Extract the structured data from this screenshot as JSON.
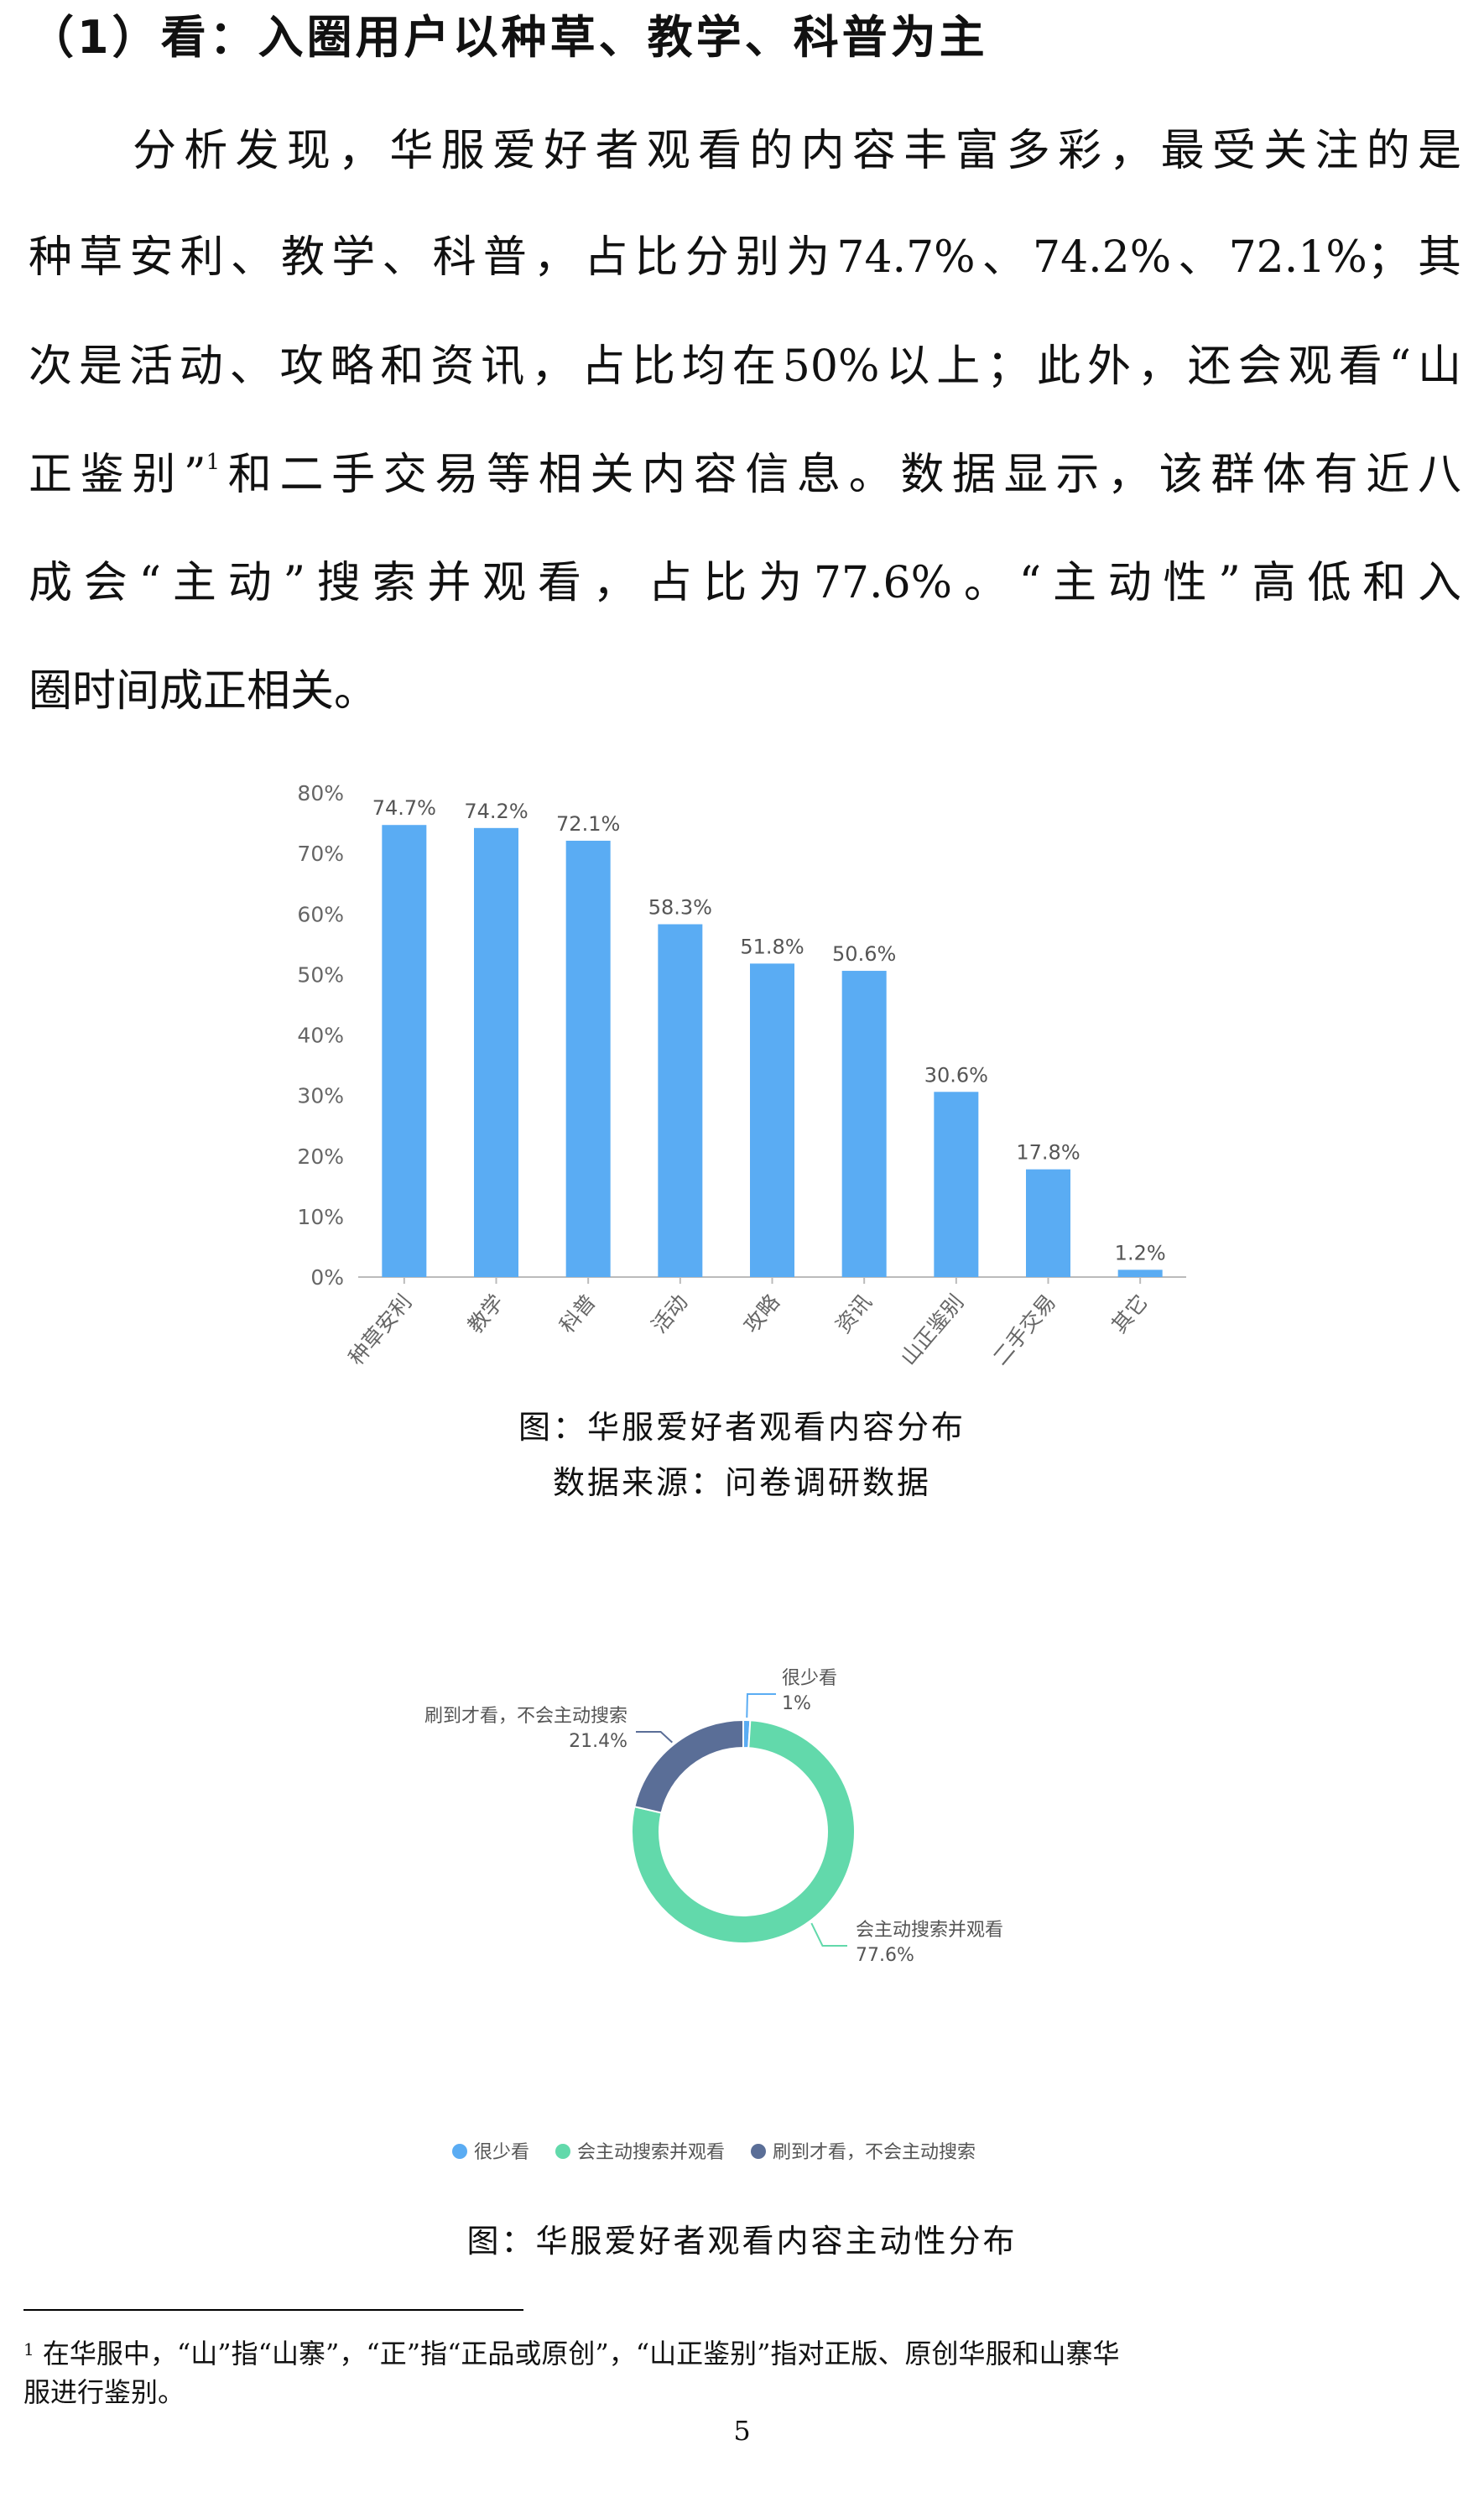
{
  "heading": "（1）看：入圈用户以种草、教学、科普为主",
  "paragraph": {
    "lines": [
      "分析发现，华服爱好者观看的内容丰富多彩，最受关注的是",
      "种草安利、教学、科普，占比分别为74.7%、74.2%、72.1%；其",
      "次是活动、攻略和资讯，占比均在50%以上；此外，还会观看“山",
      "成会“主动”搜索并观看，占比为77.6%。“主动性”高低和入",
      "圈时间成正相关。"
    ],
    "line4_before": "正鉴别”",
    "line4_footnote_ref": "1",
    "line4_after": "和二手交易等相关内容信息。数据显示，该群体有近八"
  },
  "chart_data": [
    {
      "type": "bar",
      "categories": [
        "种草安利",
        "教学",
        "科普",
        "活动",
        "攻略",
        "资讯",
        "山正鉴别",
        "二手交易",
        "其它"
      ],
      "values": [
        74.7,
        74.2,
        72.1,
        58.3,
        51.8,
        50.6,
        30.6,
        17.8,
        1.2
      ],
      "data_labels": [
        "74.7%",
        "74.2%",
        "72.1%",
        "58.3%",
        "51.8%",
        "50.6%",
        "30.6%",
        "17.8%",
        "1.2%"
      ],
      "yticks": [
        "0%",
        "10%",
        "20%",
        "30%",
        "40%",
        "50%",
        "60%",
        "70%",
        "80%"
      ],
      "ylim": [
        0,
        80
      ],
      "grid": false,
      "color": "#5aacf3",
      "title": "",
      "xlabel": "",
      "ylabel": ""
    },
    {
      "type": "pie",
      "variant": "donut",
      "slices": [
        {
          "name": "很少看",
          "value": 1,
          "label": "1%",
          "color": "#5aacf3"
        },
        {
          "name": "会主动搜索并观看",
          "value": 77.6,
          "label": "77.6%",
          "color": "#62d9ab"
        },
        {
          "name": "刷到才看，不会主动搜索",
          "value": 21.4,
          "label": "21.4%",
          "color": "#5a6e97"
        }
      ],
      "legend": "bottom"
    }
  ],
  "captions": {
    "bar_title": "图：华服爱好者观看内容分布",
    "bar_source": "数据来源：问卷调研数据",
    "pie_title": "图：华服爱好者观看内容主动性分布"
  },
  "footnote": {
    "marker": "1",
    "line1": "在华服中，“山”指“山寨”，“正”指“正品或原创”，“山正鉴别”指对正版、原创华服和山寨华",
    "line2": "服进行鉴别。"
  },
  "page_number": "5"
}
